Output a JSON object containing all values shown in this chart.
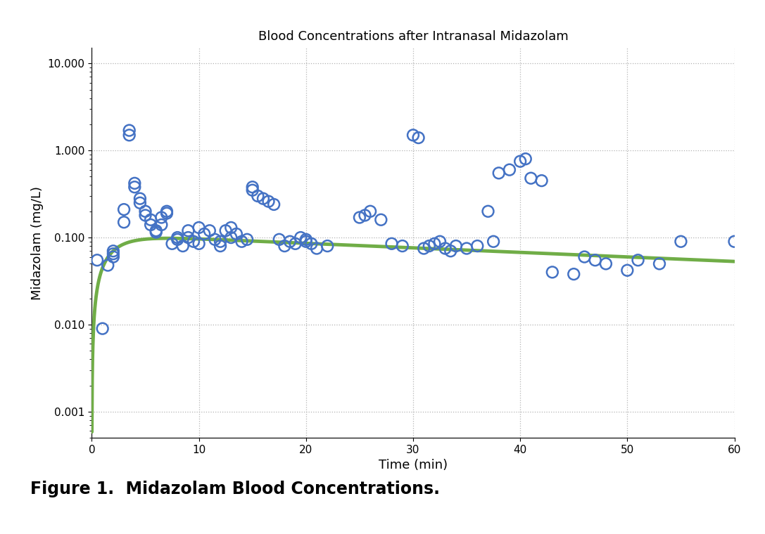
{
  "title": "Blood Concentrations after Intranasal Midazolam",
  "xlabel": "Time (min)",
  "ylabel": "Midazolam (mg/L)",
  "figure_caption": "Figure 1.  Midazolam Blood Concentrations.",
  "xlim": [
    0,
    60
  ],
  "ylim_log": [
    0.0005,
    15
  ],
  "yticks": [
    0.001,
    0.01,
    0.1,
    1.0,
    10.0
  ],
  "ytick_labels": [
    "0.001",
    "0.010",
    "0.100",
    "1.000",
    "10.000"
  ],
  "xticks": [
    0,
    10,
    20,
    30,
    40,
    50,
    60
  ],
  "scatter_edgecolor": "#4472c4",
  "line_color": "#70ad47",
  "background_color": "#ffffff",
  "scatter_x": [
    0.5,
    1.0,
    1.5,
    2.0,
    2.0,
    2.0,
    3.0,
    3.0,
    3.5,
    3.5,
    4.0,
    4.0,
    4.5,
    4.5,
    5.0,
    5.0,
    5.5,
    5.5,
    6.0,
    6.0,
    6.5,
    6.5,
    7.0,
    7.0,
    7.5,
    8.0,
    8.0,
    8.5,
    9.0,
    9.0,
    9.5,
    10.0,
    10.0,
    10.5,
    11.0,
    11.5,
    12.0,
    12.0,
    12.5,
    13.0,
    13.0,
    13.5,
    14.0,
    14.5,
    15.0,
    15.0,
    15.5,
    16.0,
    16.5,
    17.0,
    17.5,
    18.0,
    18.5,
    19.0,
    19.5,
    20.0,
    20.0,
    20.5,
    21.0,
    22.0,
    25.0,
    25.5,
    26.0,
    27.0,
    28.0,
    29.0,
    30.0,
    30.5,
    31.0,
    31.5,
    32.0,
    32.5,
    33.0,
    33.5,
    34.0,
    35.0,
    36.0,
    37.0,
    37.5,
    38.0,
    39.0,
    40.0,
    40.5,
    41.0,
    42.0,
    43.0,
    45.0,
    46.0,
    47.0,
    48.0,
    50.0,
    51.0,
    53.0,
    55.0,
    60.0
  ],
  "scatter_y": [
    0.055,
    0.009,
    0.048,
    0.065,
    0.06,
    0.07,
    0.15,
    0.21,
    1.7,
    1.5,
    0.42,
    0.38,
    0.25,
    0.28,
    0.2,
    0.18,
    0.14,
    0.16,
    0.12,
    0.115,
    0.14,
    0.17,
    0.2,
    0.19,
    0.085,
    0.095,
    0.1,
    0.08,
    0.1,
    0.12,
    0.09,
    0.085,
    0.13,
    0.11,
    0.12,
    0.095,
    0.08,
    0.09,
    0.12,
    0.1,
    0.13,
    0.11,
    0.09,
    0.095,
    0.38,
    0.35,
    0.3,
    0.28,
    0.26,
    0.24,
    0.095,
    0.08,
    0.09,
    0.085,
    0.1,
    0.095,
    0.09,
    0.085,
    0.075,
    0.08,
    0.17,
    0.18,
    0.2,
    0.16,
    0.085,
    0.08,
    1.5,
    1.4,
    0.075,
    0.08,
    0.085,
    0.09,
    0.075,
    0.07,
    0.08,
    0.075,
    0.08,
    0.2,
    0.09,
    0.55,
    0.6,
    0.75,
    0.8,
    0.48,
    0.45,
    0.04,
    0.038,
    0.06,
    0.055,
    0.05,
    0.042,
    0.055,
    0.05,
    0.09,
    0.09
  ],
  "k_abs": 0.55,
  "k_elim": 0.012,
  "C_peak": 0.098,
  "t_start": 0.01,
  "t_end": 60.0
}
